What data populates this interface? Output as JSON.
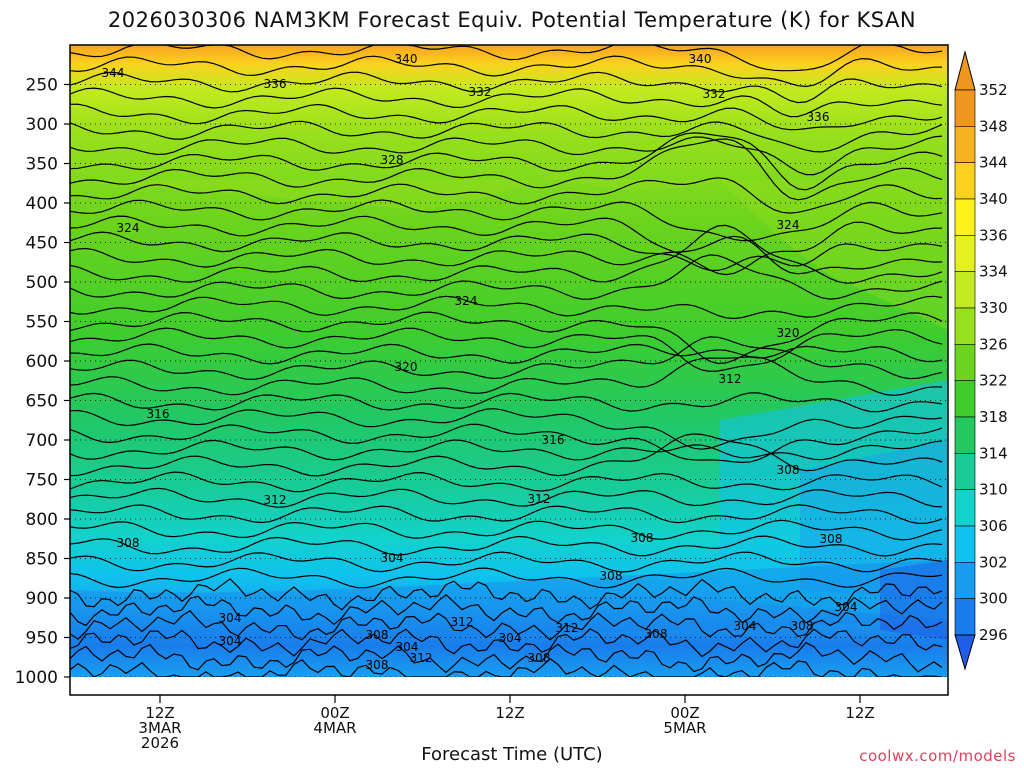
{
  "title": "2026030306 NAM3KM Forecast Equiv. Potential Temperature (K) for KSAN",
  "credit": "coolwx.com/models",
  "colors": {
    "ground": "#a0522d",
    "contour": "#000000",
    "background": "#ffffff"
  },
  "chart_data": {
    "type": "heatmap",
    "title": "2026030306 NAM3KM Forecast Equiv. Potential Temperature (K) for KSAN",
    "xlabel": "Forecast Time (UTC)",
    "ylabel": "",
    "y_axis": {
      "ticks": [
        "250",
        "300",
        "350",
        "400",
        "450",
        "500",
        "550",
        "600",
        "650",
        "700",
        "750",
        "800",
        "850",
        "900",
        "950",
        "1000"
      ],
      "range": [
        200,
        1000
      ]
    },
    "x_axis": {
      "ticks": [
        {
          "lines": [
            "12Z",
            "3MAR",
            "2026"
          ]
        },
        {
          "lines": [
            "00Z",
            "4MAR"
          ]
        },
        {
          "lines": [
            "12Z"
          ]
        },
        {
          "lines": [
            "00Z",
            "5MAR"
          ]
        },
        {
          "lines": [
            "12Z"
          ]
        }
      ]
    },
    "colorbar": {
      "labels": [
        "352",
        "348",
        "344",
        "340",
        "336",
        "334",
        "330",
        "326",
        "322",
        "318",
        "314",
        "310",
        "306",
        "302",
        "300",
        "296"
      ],
      "colors": [
        "#f0961e",
        "#f5b31e",
        "#fad21e",
        "#fdf21a",
        "#e6f01e",
        "#c3ea1e",
        "#98e01c",
        "#6cd41c",
        "#40cd2c",
        "#22c860",
        "#18cc98",
        "#12d2cc",
        "#10c2ee",
        "#189ef0",
        "#1a7cec",
        "#1e5ee8"
      ]
    },
    "contour_labels": [
      "344",
      "336",
      "340",
      "332",
      "340",
      "332",
      "336",
      "328",
      "324",
      "324",
      "324",
      "320",
      "316",
      "320",
      "316",
      "312",
      "312",
      "312",
      "308",
      "308",
      "304",
      "308",
      "308",
      "304",
      "304",
      "312",
      "308",
      "304",
      "312",
      "308",
      "304",
      "308",
      "304",
      "304",
      "308",
      "312",
      "308",
      "308"
    ]
  }
}
